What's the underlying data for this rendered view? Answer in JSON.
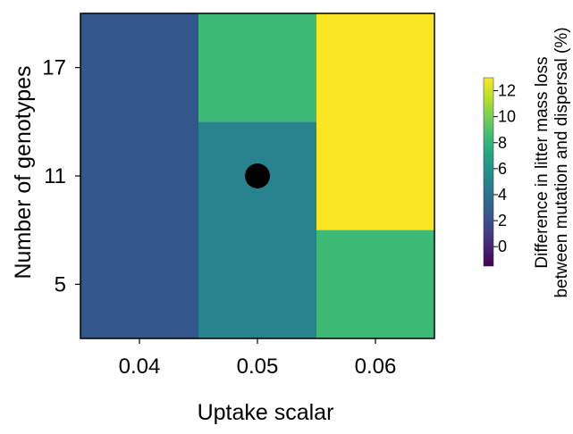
{
  "chart_data": {
    "type": "heatmap",
    "xlabel": "Uptake scalar",
    "ylabel": "Number of genotypes",
    "x_ticks": [
      "0.04",
      "0.05",
      "0.06"
    ],
    "y_ticks": [
      "5",
      "11",
      "17"
    ],
    "cells": [
      {
        "x": "0.04",
        "y_range": [
          2,
          20
        ],
        "value": 3.0,
        "color": "#33578c"
      },
      {
        "x": "0.05",
        "y_range": [
          14,
          20
        ],
        "value": 8.4,
        "color": "#3dbb76"
      },
      {
        "x": "0.05",
        "y_range": [
          2,
          14
        ],
        "value": 5.8,
        "color": "#27848e"
      },
      {
        "x": "0.06",
        "y_range": [
          8,
          20
        ],
        "value": 12.8,
        "color": "#f9e521"
      },
      {
        "x": "0.06",
        "y_range": [
          2,
          8
        ],
        "value": 8.4,
        "color": "#3dbb76"
      }
    ],
    "y_range": [
      2,
      20
    ],
    "marker": {
      "x": "0.05",
      "y": 11,
      "color": "#000000"
    },
    "colorbar": {
      "label_lines": [
        "Difference in litter mass loss",
        "between mutation and dispersal (%)"
      ],
      "ticks": [
        "0",
        "2",
        "4",
        "6",
        "8",
        "10",
        "12"
      ],
      "range": [
        -1.5,
        13
      ],
      "colormap": "viridis"
    }
  }
}
